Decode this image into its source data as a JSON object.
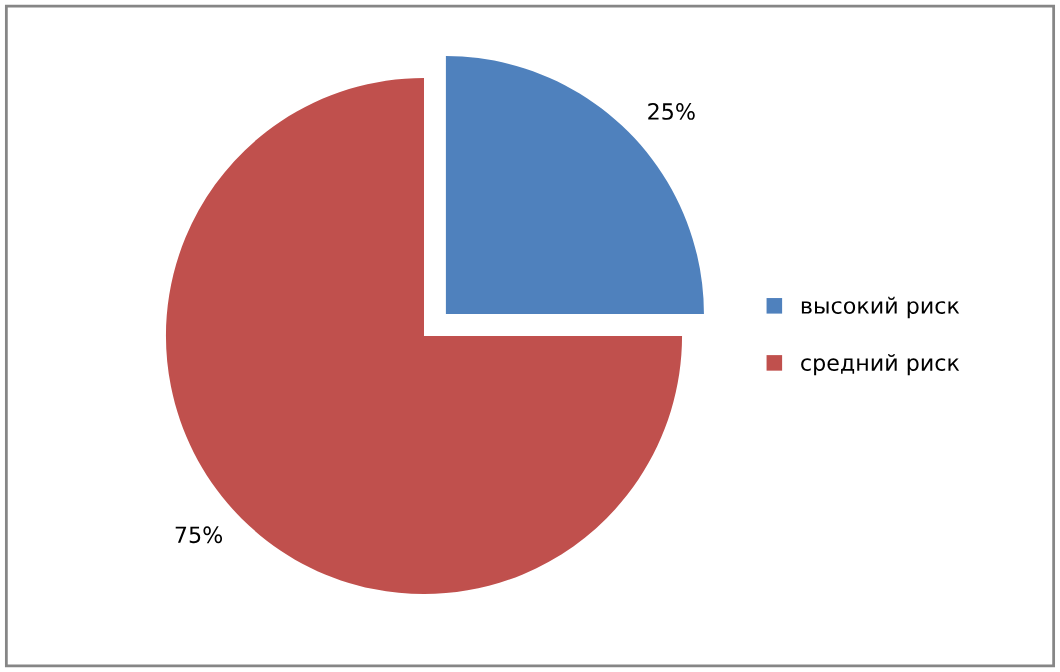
{
  "chart_data": {
    "type": "pie",
    "categories": [
      "высокий риск",
      "средний риск"
    ],
    "values": [
      25,
      75
    ],
    "colors": [
      "#4f81bd",
      "#c0504d"
    ],
    "value_labels": [
      "25%",
      "75%"
    ],
    "legend": "right"
  }
}
